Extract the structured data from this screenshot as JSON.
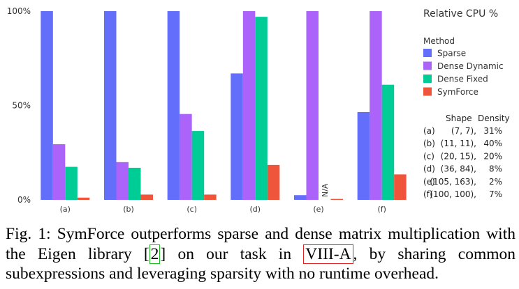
{
  "chart_data": {
    "type": "bar",
    "title": "Relative CPU %",
    "categories": [
      "(a)",
      "(b)",
      "(c)",
      "(d)",
      "(e)",
      "(f)"
    ],
    "ylim": [
      0,
      100
    ],
    "yticks": [
      "0%",
      "50%",
      "100%"
    ],
    "legend_title": "Method",
    "legend_placement": "right",
    "series": [
      {
        "name": "Sparse",
        "color": "#636efa",
        "values": [
          100,
          100,
          100,
          67,
          2.5,
          46.5
        ]
      },
      {
        "name": "Dense Dynamic",
        "color": "#ab63fa",
        "values": [
          29.5,
          20,
          45.5,
          100,
          100,
          100
        ]
      },
      {
        "name": "Dense Fixed",
        "color": "#00cc96",
        "values": [
          17.5,
          17,
          36.5,
          97,
          null,
          61
        ]
      },
      {
        "name": "SymForce",
        "color": "#ef553b",
        "values": [
          1.2,
          2.8,
          2.8,
          18.5,
          0.5,
          13.5
        ]
      }
    ],
    "annotations": [
      {
        "category": "(e)",
        "series": "Dense Fixed",
        "text": "N/A"
      }
    ],
    "table": {
      "header": [
        "Shape",
        "Density"
      ],
      "rows": [
        {
          "label": "(a)",
          "shape": "(7, 7),",
          "density": "31%"
        },
        {
          "label": "(b)",
          "shape": "(11, 11),",
          "density": "40%"
        },
        {
          "label": "(c)",
          "shape": "(20, 15),",
          "density": "20%"
        },
        {
          "label": "(d)",
          "shape": "(36, 84),",
          "density": "8%"
        },
        {
          "label": "(e)",
          "shape": "(105, 163),",
          "density": "2%"
        },
        {
          "label": "(f)",
          "shape": "(100, 100),",
          "density": "7%"
        }
      ]
    },
    "grid": false
  },
  "caption": {
    "prefix": "Fig. 1: SymForce outperforms sparse and dense matrix multiplication with the Eigen library [",
    "cite": "2",
    "middle": "] on our task in ",
    "section": "VIII-A",
    "suffix": ", by sharing common subexpressions and leveraging sparsity with no runtime overhead."
  }
}
